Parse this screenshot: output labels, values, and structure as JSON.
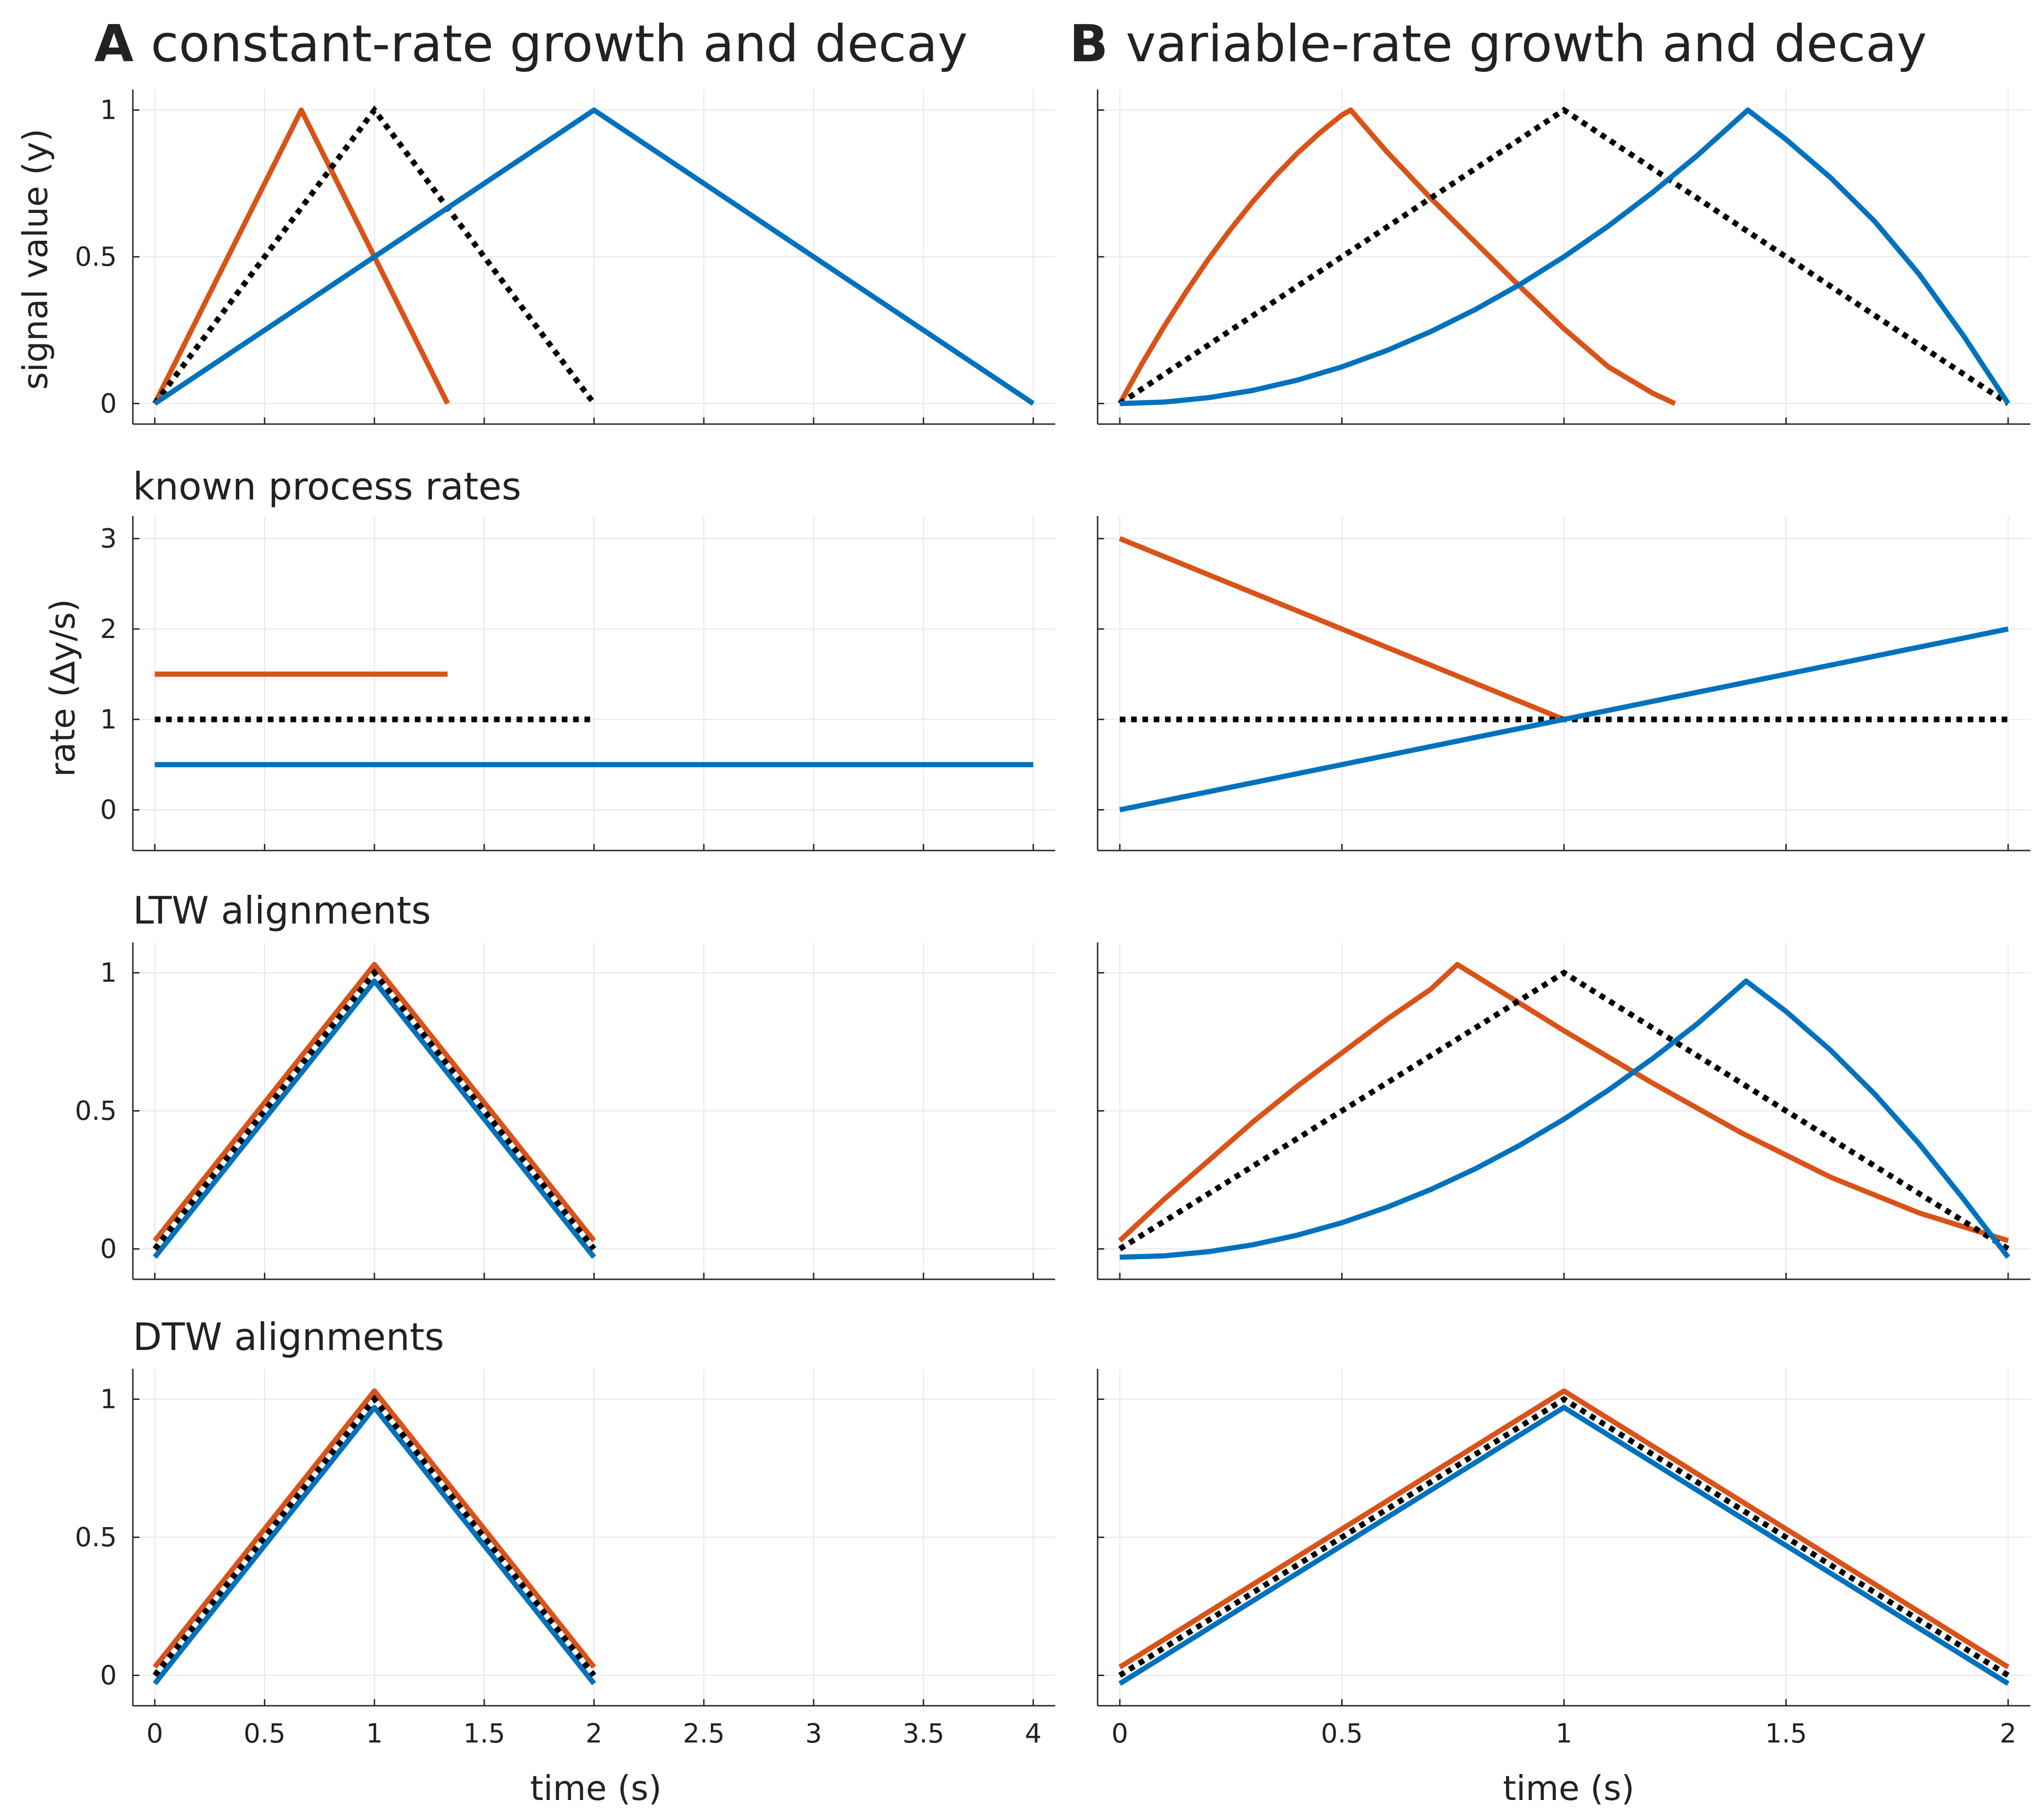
{
  "colors": {
    "orange": "#D95319",
    "blue": "#0072BD",
    "black": "#000000",
    "grid": "#e6e6e6",
    "axis": "#262626"
  },
  "panels": {
    "A": {
      "letter": "A",
      "title": "constant-rate growth and decay"
    },
    "B": {
      "letter": "B",
      "title": "variable-rate growth and decay"
    }
  },
  "row_titles": [
    "",
    "known process rates",
    "LTW alignments",
    "DTW alignments"
  ],
  "labels": {
    "ylabel_signal": "signal value (y)",
    "ylabel_rate": "rate (∆y/s)",
    "xlabel": "time (s)"
  },
  "chart_data": [
    {
      "type": "line",
      "panel": "A",
      "row": 0,
      "xlim": [
        -0.1,
        4.1
      ],
      "ylim": [
        -0.07,
        1.07
      ],
      "xticks": [
        0,
        0.5,
        1,
        1.5,
        2,
        2.5,
        3,
        3.5,
        4
      ],
      "yticks": [
        0,
        0.5,
        1
      ],
      "ytick_labels": [
        "0",
        "0.5",
        "1"
      ],
      "ylabel": "signal value (y)",
      "grid": true,
      "series": [
        {
          "color": "orange",
          "style": "solid",
          "points": [
            [
              0,
              0
            ],
            [
              0.667,
              1
            ],
            [
              1.333,
              0
            ]
          ]
        },
        {
          "color": "black",
          "style": "dotted",
          "points": [
            [
              0,
              0
            ],
            [
              1,
              1
            ],
            [
              2,
              0
            ]
          ]
        },
        {
          "color": "blue",
          "style": "solid",
          "points": [
            [
              0,
              0
            ],
            [
              2,
              1
            ],
            [
              4,
              0
            ]
          ]
        }
      ]
    },
    {
      "type": "line",
      "panel": "B",
      "row": 0,
      "xlim": [
        -0.05,
        2.05
      ],
      "ylim": [
        -0.07,
        1.07
      ],
      "xticks": [
        0,
        0.5,
        1,
        1.5,
        2
      ],
      "yticks": [
        0,
        0.5,
        1
      ],
      "grid": true,
      "series": [
        {
          "color": "orange",
          "style": "solid",
          "points": [
            [
              0,
              0
            ],
            [
              0.05,
              0.136
            ],
            [
              0.1,
              0.263
            ],
            [
              0.15,
              0.382
            ],
            [
              0.2,
              0.493
            ],
            [
              0.25,
              0.595
            ],
            [
              0.3,
              0.689
            ],
            [
              0.35,
              0.775
            ],
            [
              0.4,
              0.853
            ],
            [
              0.45,
              0.922
            ],
            [
              0.5,
              0.983
            ],
            [
              0.52,
              1.0
            ],
            [
              0.6,
              0.86
            ],
            [
              0.7,
              0.7
            ],
            [
              0.8,
              0.55
            ],
            [
              0.9,
              0.4
            ],
            [
              1.0,
              0.255
            ],
            [
              1.1,
              0.125
            ],
            [
              1.2,
              0.035
            ],
            [
              1.25,
              0
            ]
          ]
        },
        {
          "color": "black",
          "style": "dotted",
          "points": [
            [
              0,
              0
            ],
            [
              1,
              1
            ],
            [
              2,
              0
            ]
          ]
        },
        {
          "color": "blue",
          "style": "solid",
          "points": [
            [
              0,
              0
            ],
            [
              0.1,
              0.005
            ],
            [
              0.2,
              0.02
            ],
            [
              0.3,
              0.045
            ],
            [
              0.4,
              0.08
            ],
            [
              0.5,
              0.125
            ],
            [
              0.6,
              0.18
            ],
            [
              0.7,
              0.245
            ],
            [
              0.8,
              0.32
            ],
            [
              0.9,
              0.405
            ],
            [
              1.0,
              0.5
            ],
            [
              1.1,
              0.605
            ],
            [
              1.2,
              0.72
            ],
            [
              1.3,
              0.845
            ],
            [
              1.414,
              1.0
            ],
            [
              1.5,
              0.9
            ],
            [
              1.6,
              0.77
            ],
            [
              1.7,
              0.62
            ],
            [
              1.8,
              0.44
            ],
            [
              1.9,
              0.23
            ],
            [
              2.0,
              0
            ]
          ]
        }
      ]
    },
    {
      "type": "line",
      "panel": "A",
      "row": 1,
      "xlim": [
        -0.1,
        4.1
      ],
      "ylim": [
        -0.45,
        3.25
      ],
      "xticks": [
        0,
        0.5,
        1,
        1.5,
        2,
        2.5,
        3,
        3.5,
        4
      ],
      "yticks": [
        0,
        1,
        2,
        3
      ],
      "ytick_labels": [
        "0",
        "1",
        "2",
        "3"
      ],
      "ylabel": "rate (∆y/s)",
      "grid": true,
      "series": [
        {
          "color": "orange",
          "style": "solid",
          "points": [
            [
              0,
              1.5
            ],
            [
              1.333,
              1.5
            ]
          ]
        },
        {
          "color": "black",
          "style": "dotted",
          "points": [
            [
              0,
              1
            ],
            [
              2,
              1
            ]
          ]
        },
        {
          "color": "blue",
          "style": "solid",
          "points": [
            [
              0,
              0.5
            ],
            [
              4,
              0.5
            ]
          ]
        }
      ]
    },
    {
      "type": "line",
      "panel": "B",
      "row": 1,
      "xlim": [
        -0.05,
        2.05
      ],
      "ylim": [
        -0.45,
        3.25
      ],
      "xticks": [
        0,
        0.5,
        1,
        1.5,
        2
      ],
      "yticks": [
        0,
        1,
        2,
        3
      ],
      "grid": true,
      "series": [
        {
          "color": "orange",
          "style": "solid",
          "points": [
            [
              0,
              3
            ],
            [
              1,
              1
            ]
          ]
        },
        {
          "color": "black",
          "style": "dotted",
          "points": [
            [
              0,
              1
            ],
            [
              2,
              1
            ]
          ]
        },
        {
          "color": "blue",
          "style": "solid",
          "points": [
            [
              0,
              0
            ],
            [
              2,
              2
            ]
          ]
        }
      ]
    },
    {
      "type": "line",
      "panel": "A",
      "row": 2,
      "xlim": [
        -0.1,
        4.1
      ],
      "ylim": [
        -0.11,
        1.11
      ],
      "xticks": [
        0,
        0.5,
        1,
        1.5,
        2,
        2.5,
        3,
        3.5,
        4
      ],
      "yticks": [
        0,
        0.5,
        1
      ],
      "ytick_labels": [
        "0",
        "0.5",
        "1"
      ],
      "grid": true,
      "series": [
        {
          "color": "blue",
          "style": "solid",
          "points": [
            [
              0,
              -0.03
            ],
            [
              1,
              0.97
            ],
            [
              2,
              -0.03
            ]
          ]
        },
        {
          "color": "orange",
          "style": "solid",
          "points": [
            [
              0,
              0.03
            ],
            [
              1,
              1.03
            ],
            [
              2,
              0.03
            ]
          ]
        },
        {
          "color": "black",
          "style": "dotted",
          "points": [
            [
              0,
              0
            ],
            [
              1,
              1
            ],
            [
              2,
              0
            ]
          ]
        }
      ]
    },
    {
      "type": "line",
      "panel": "B",
      "row": 2,
      "xlim": [
        -0.05,
        2.05
      ],
      "ylim": [
        -0.11,
        1.11
      ],
      "xticks": [
        0,
        0.5,
        1,
        1.5,
        2
      ],
      "yticks": [
        0,
        0.5,
        1
      ],
      "grid": true,
      "series": [
        {
          "color": "orange",
          "style": "solid",
          "points": [
            [
              0,
              0.03
            ],
            [
              0.1,
              0.18
            ],
            [
              0.2,
              0.32
            ],
            [
              0.3,
              0.46
            ],
            [
              0.4,
              0.59
            ],
            [
              0.5,
              0.71
            ],
            [
              0.6,
              0.83
            ],
            [
              0.7,
              0.94
            ],
            [
              0.76,
              1.03
            ],
            [
              0.85,
              0.94
            ],
            [
              1.0,
              0.79
            ],
            [
              1.2,
              0.6
            ],
            [
              1.4,
              0.42
            ],
            [
              1.6,
              0.26
            ],
            [
              1.8,
              0.13
            ],
            [
              2.0,
              0.03
            ]
          ]
        },
        {
          "color": "black",
          "style": "dotted",
          "points": [
            [
              0,
              0
            ],
            [
              1,
              1
            ],
            [
              2,
              0
            ]
          ]
        },
        {
          "color": "blue",
          "style": "solid",
          "points": [
            [
              0,
              -0.03
            ],
            [
              0.1,
              -0.025
            ],
            [
              0.2,
              -0.01
            ],
            [
              0.3,
              0.015
            ],
            [
              0.4,
              0.05
            ],
            [
              0.5,
              0.095
            ],
            [
              0.6,
              0.15
            ],
            [
              0.7,
              0.215
            ],
            [
              0.8,
              0.29
            ],
            [
              0.9,
              0.375
            ],
            [
              1.0,
              0.47
            ],
            [
              1.1,
              0.575
            ],
            [
              1.2,
              0.69
            ],
            [
              1.3,
              0.815
            ],
            [
              1.41,
              0.97
            ],
            [
              1.5,
              0.86
            ],
            [
              1.6,
              0.72
            ],
            [
              1.7,
              0.56
            ],
            [
              1.8,
              0.38
            ],
            [
              1.9,
              0.18
            ],
            [
              2.0,
              -0.03
            ]
          ]
        }
      ]
    },
    {
      "type": "line",
      "panel": "A",
      "row": 3,
      "xlim": [
        -0.1,
        4.1
      ],
      "ylim": [
        -0.11,
        1.11
      ],
      "xticks": [
        0,
        0.5,
        1,
        1.5,
        2,
        2.5,
        3,
        3.5,
        4
      ],
      "xtick_labels": [
        "0",
        "0.5",
        "1",
        "1.5",
        "2",
        "2.5",
        "3",
        "3.5",
        "4"
      ],
      "yticks": [
        0,
        0.5,
        1
      ],
      "ytick_labels": [
        "0",
        "0.5",
        "1"
      ],
      "xlabel": "time (s)",
      "grid": true,
      "series": [
        {
          "color": "blue",
          "style": "solid",
          "points": [
            [
              0,
              -0.03
            ],
            [
              1,
              0.97
            ],
            [
              2,
              -0.03
            ]
          ]
        },
        {
          "color": "orange",
          "style": "solid",
          "points": [
            [
              0,
              0.03
            ],
            [
              1,
              1.03
            ],
            [
              2,
              0.03
            ]
          ]
        },
        {
          "color": "black",
          "style": "dotted",
          "points": [
            [
              0,
              0
            ],
            [
              1,
              1
            ],
            [
              2,
              0
            ]
          ]
        }
      ]
    },
    {
      "type": "line",
      "panel": "B",
      "row": 3,
      "xlim": [
        -0.05,
        2.05
      ],
      "ylim": [
        -0.11,
        1.11
      ],
      "xticks": [
        0,
        0.5,
        1,
        1.5,
        2
      ],
      "xtick_labels": [
        "0",
        "0.5",
        "1",
        "1.5",
        "2"
      ],
      "yticks": [
        0,
        0.5,
        1
      ],
      "xlabel": "time (s)",
      "grid": true,
      "series": [
        {
          "color": "blue",
          "style": "solid",
          "points": [
            [
              0,
              -0.03
            ],
            [
              1,
              0.97
            ],
            [
              2,
              -0.03
            ]
          ]
        },
        {
          "color": "orange",
          "style": "solid",
          "points": [
            [
              0,
              0.03
            ],
            [
              1,
              1.03
            ],
            [
              2,
              0.03
            ]
          ]
        },
        {
          "color": "black",
          "style": "dotted",
          "points": [
            [
              0,
              0
            ],
            [
              1,
              1
            ],
            [
              2,
              0
            ]
          ]
        }
      ]
    }
  ]
}
